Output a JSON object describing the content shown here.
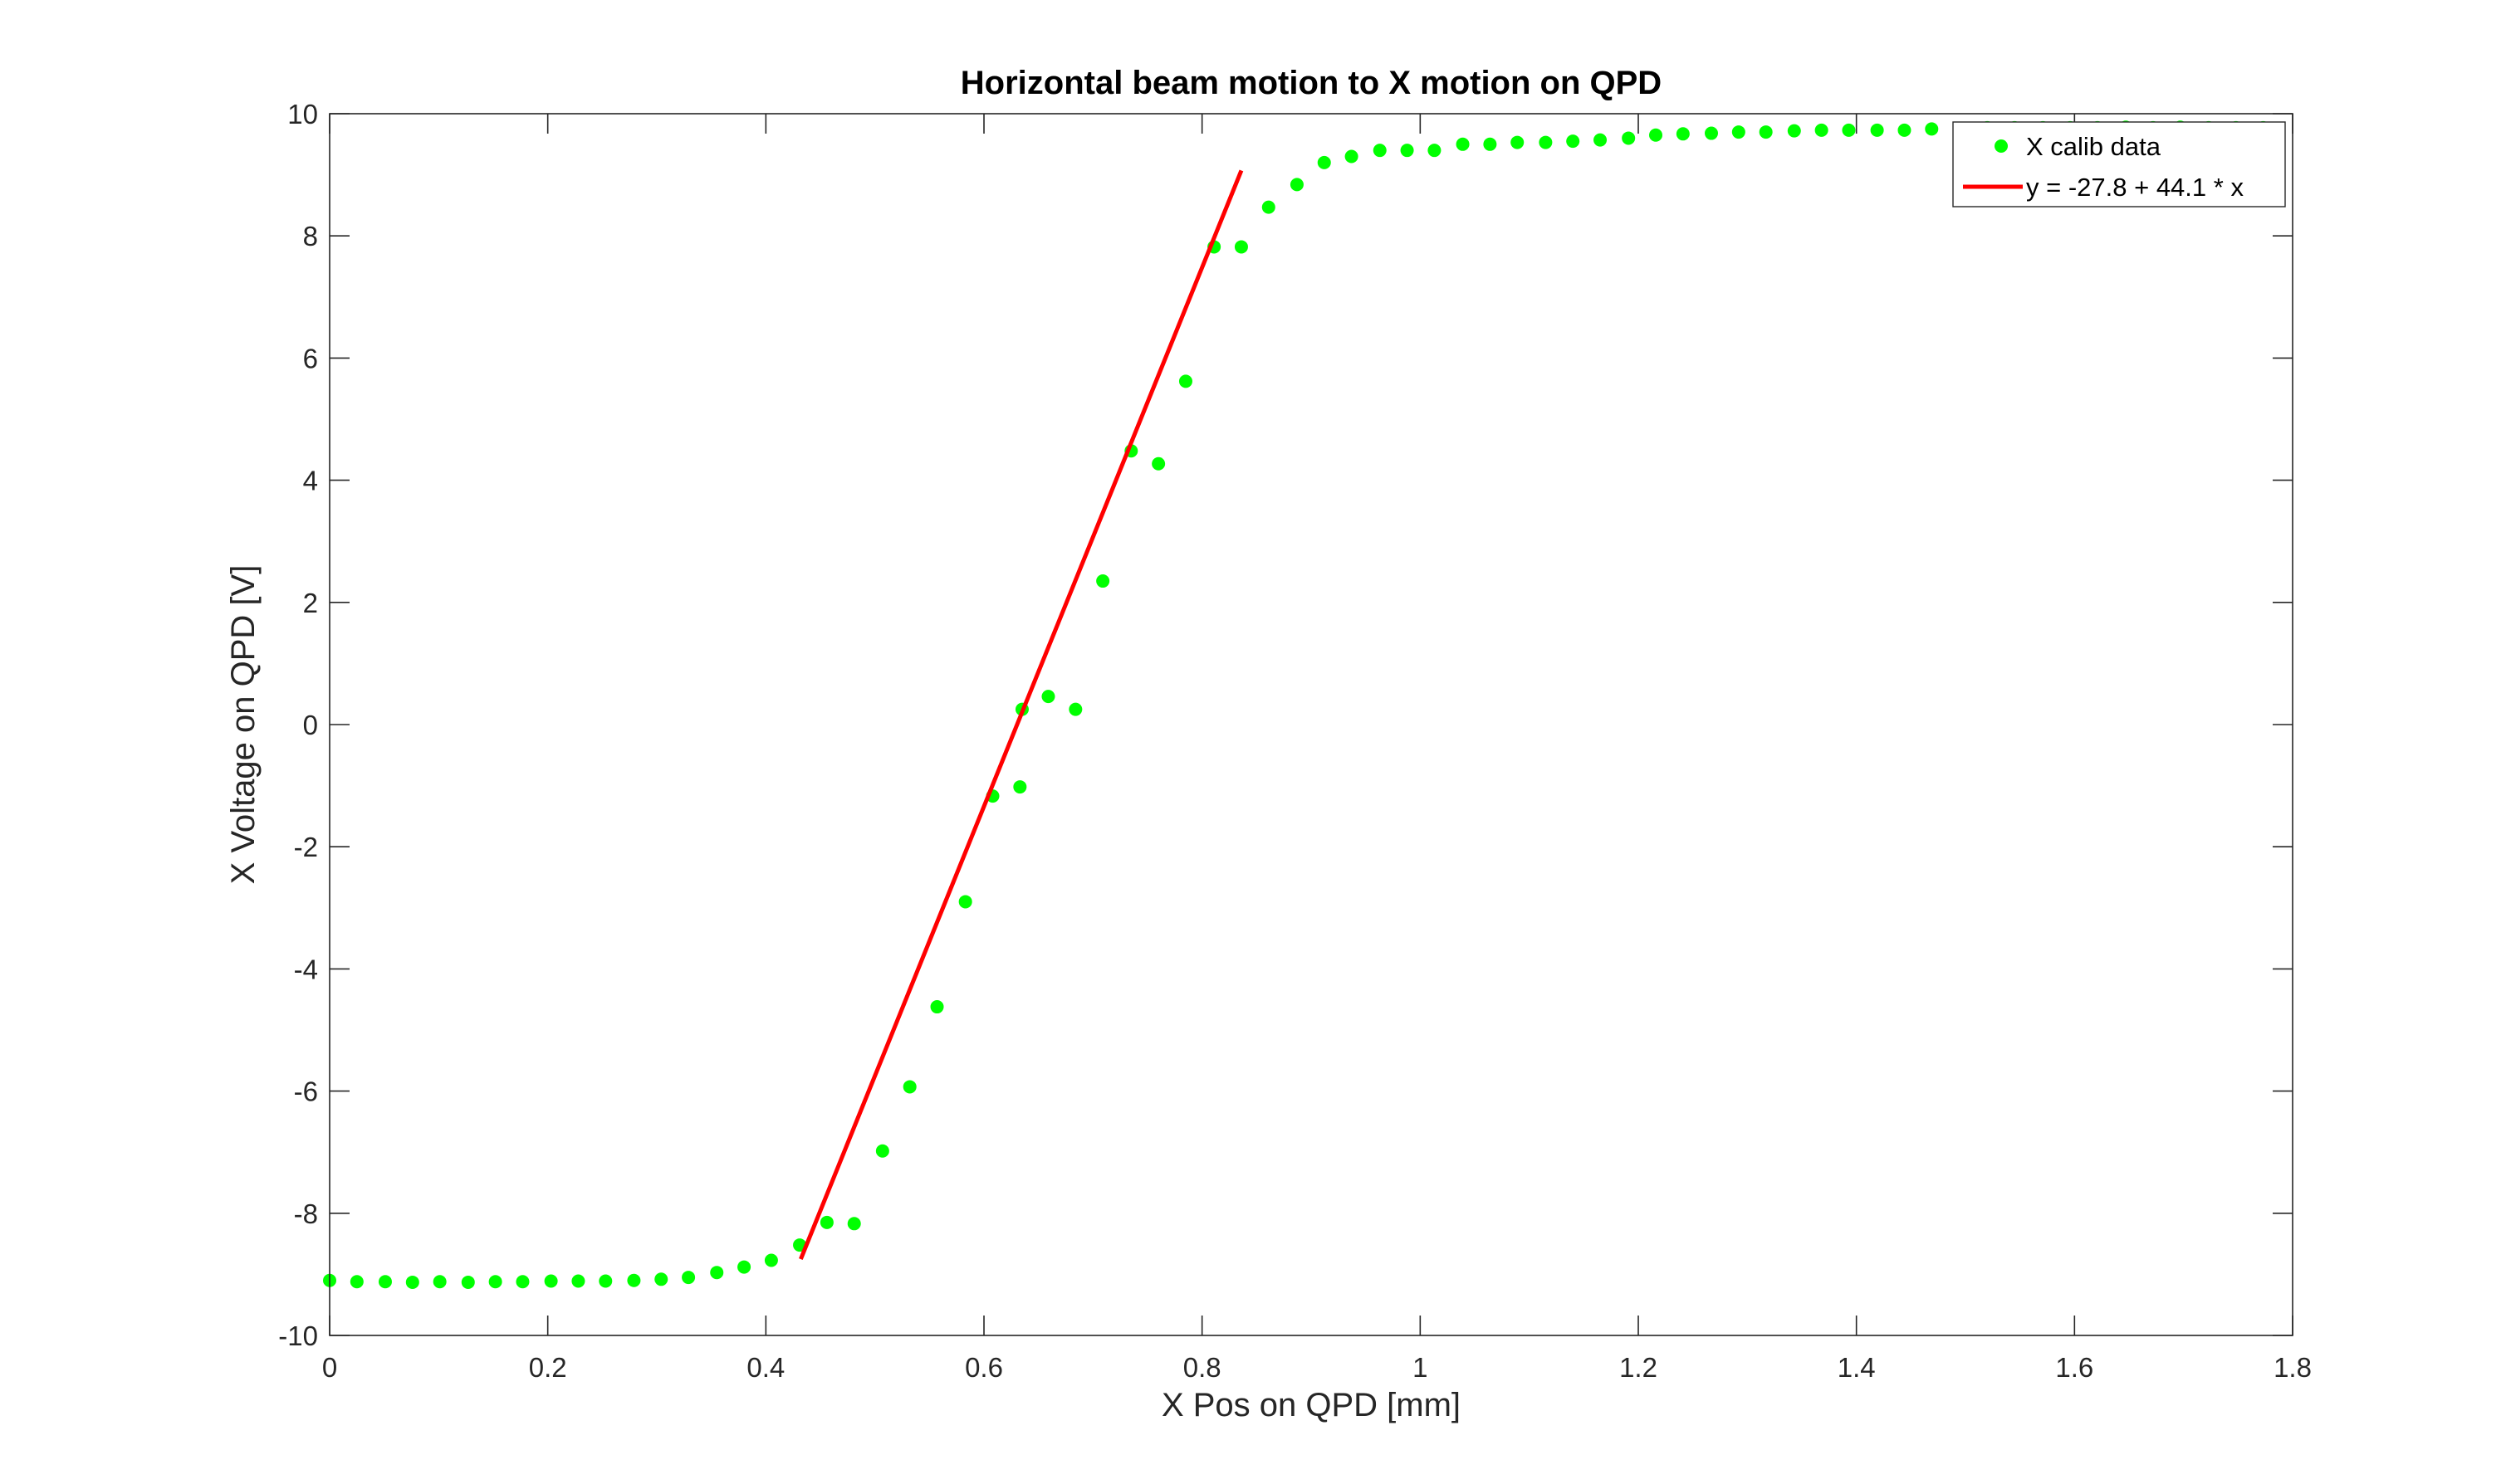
{
  "chart_data": {
    "type": "scatter",
    "title": "Horizontal beam motion to X motion on QPD",
    "xlabel": "X Pos on QPD [mm]",
    "ylabel": "X Voltage on QPD [V]",
    "xlim": [
      0,
      1.8
    ],
    "ylim": [
      -10,
      10
    ],
    "xticks": [
      0,
      0.2,
      0.4,
      0.6,
      0.8,
      1,
      1.2,
      1.4,
      1.6,
      1.8
    ],
    "xtick_labels": [
      "0",
      "0.2",
      "0.4",
      "0.6",
      "0.8",
      "1",
      "1.2",
      "1.4",
      "1.6",
      "1.8"
    ],
    "yticks": [
      -10,
      -8,
      -6,
      -4,
      -2,
      0,
      2,
      4,
      6,
      8,
      10
    ],
    "ytick_labels": [
      "-10",
      "-8",
      "-6",
      "-4",
      "-2",
      "0",
      "2",
      "4",
      "6",
      "8",
      "10"
    ],
    "grid": false,
    "legend_position": "top-right",
    "series": [
      {
        "name": "X calib data",
        "kind": "scatter",
        "color": "#00ff00",
        "x": [
          0,
          0.025,
          0.051,
          0.076,
          0.101,
          0.127,
          0.152,
          0.177,
          0.203,
          0.228,
          0.253,
          0.279,
          0.304,
          0.329,
          0.355,
          0.38,
          0.405,
          0.431,
          0.456,
          0.481,
          0.507,
          0.532,
          0.557,
          0.583,
          0.608,
          0.633,
          0.635,
          0.659,
          0.684,
          0.709,
          0.735,
          0.76,
          0.785,
          0.811,
          0.836,
          0.861,
          0.887,
          0.912,
          0.937,
          0.963,
          0.988,
          1.013,
          1.039,
          1.064,
          1.089,
          1.115,
          1.14,
          1.165,
          1.191,
          1.216,
          1.241,
          1.267,
          1.292,
          1.317,
          1.343,
          1.368,
          1.393,
          1.419,
          1.444,
          1.469,
          1.495,
          1.52,
          1.545,
          1.571,
          1.596,
          1.621,
          1.647,
          1.672,
          1.697,
          1.723,
          1.748,
          1.773
        ],
        "y": [
          -9.1,
          -9.12,
          -9.12,
          -9.13,
          -9.12,
          -9.13,
          -9.12,
          -9.12,
          -9.11,
          -9.11,
          -9.11,
          -9.1,
          -9.08,
          -9.05,
          -8.97,
          -8.88,
          -8.77,
          -8.52,
          -8.15,
          -8.17,
          -6.98,
          -5.93,
          -4.62,
          -2.9,
          -1.17,
          -1.02,
          0.25,
          0.46,
          0.25,
          2.35,
          4.48,
          4.27,
          5.62,
          7.82,
          7.82,
          8.47,
          8.84,
          9.2,
          9.3,
          9.4,
          9.4,
          9.4,
          9.5,
          9.5,
          9.53,
          9.53,
          9.55,
          9.57,
          9.6,
          9.65,
          9.67,
          9.68,
          9.7,
          9.7,
          9.72,
          9.73,
          9.73,
          9.73,
          9.73,
          9.75,
          9.76,
          9.77,
          9.77,
          9.77,
          9.77,
          9.77,
          9.78,
          9.77,
          9.78,
          9.77,
          9.77,
          9.77
        ]
      },
      {
        "name": "y = -27.8 + 44.1 * x",
        "kind": "line",
        "color": "#ff0000",
        "x": [
          0.432,
          0.836
        ],
        "y": [
          -8.75,
          9.07
        ]
      }
    ]
  }
}
